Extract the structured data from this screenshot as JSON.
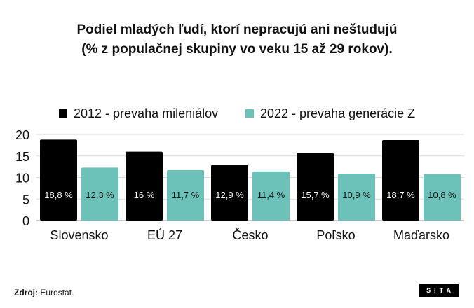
{
  "title": {
    "line1": "Podiel mladých ľudí, ktorí nepracujú ani neštudujú",
    "line2": "(% z populačnej skupiny vo veku 15 až 29 rokov)."
  },
  "chart_data": {
    "type": "bar",
    "categories": [
      "Slovensko",
      "EÚ 27",
      "Česko",
      "Poľsko",
      "Maďarsko"
    ],
    "series": [
      {
        "name": "2012 - prevaha mileniálov",
        "color": "#000000",
        "values": [
          18.8,
          16,
          12.9,
          15.7,
          18.7
        ],
        "labels": [
          "18,8 %",
          "16 %",
          "12,9 %",
          "15,7 %",
          "18,7 %"
        ],
        "label_color": "#ffffff"
      },
      {
        "name": "2022 - prevaha generácie Z",
        "color": "#6cc1b8",
        "values": [
          12.3,
          11.7,
          11.4,
          10.9,
          10.8
        ],
        "labels": [
          "12,3 %",
          "11,7 %",
          "11,4 %",
          "10,9 %",
          "10,8 %"
        ],
        "label_color": "#111111"
      }
    ],
    "y_ticks": [
      "0",
      "5",
      "10",
      "15",
      "20"
    ],
    "ylim": [
      0,
      20
    ],
    "grid": true,
    "legend_position": "top"
  },
  "footer": {
    "source_label": "Zdroj:",
    "source_text": "Eurostat."
  },
  "logo": {
    "text": "SITA"
  }
}
